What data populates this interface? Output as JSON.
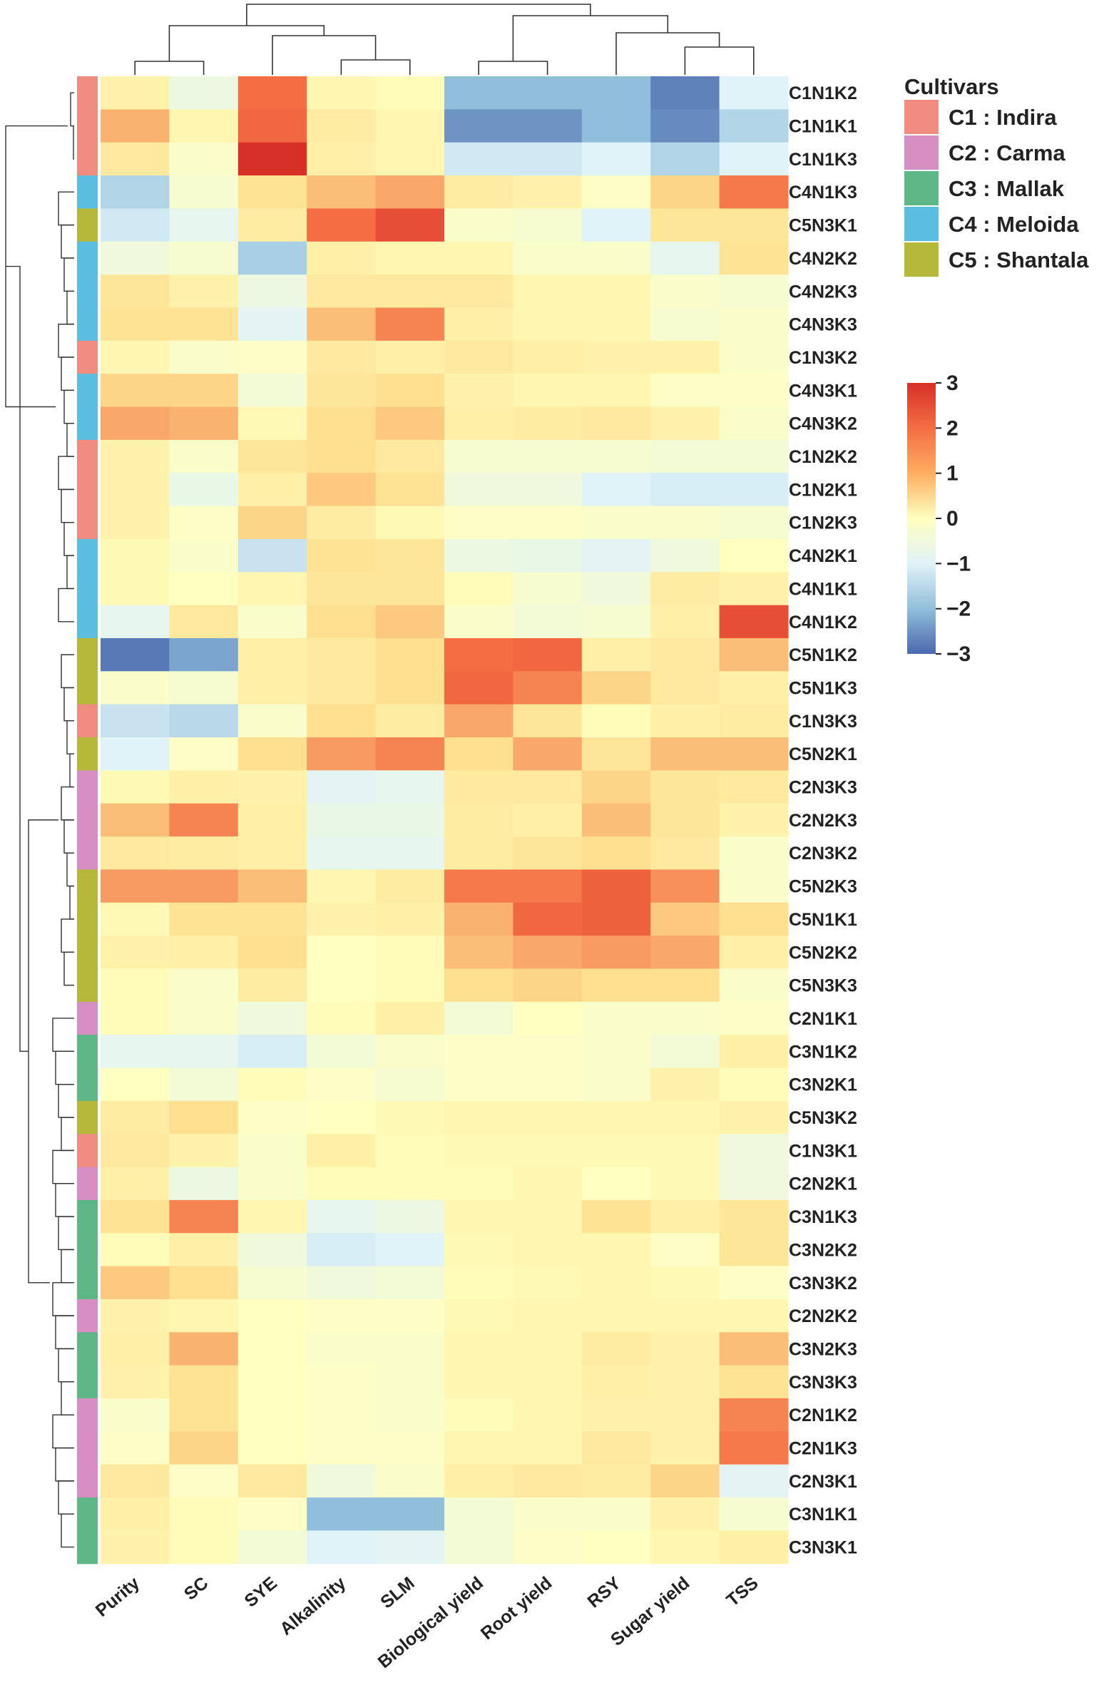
{
  "chart_data": {
    "type": "heatmap",
    "title": "",
    "columns": [
      "Purity",
      "SC",
      "SYE",
      "Alkalinity",
      "SLM",
      "Biological yield",
      "Root yield",
      "RSY",
      "Sugar yield",
      "TSS"
    ],
    "rows": [
      {
        "label": "C1N1K2",
        "cultivar": "C1",
        "values": [
          0.4,
          -0.6,
          2.0,
          0.3,
          0.1,
          -2.0,
          -2.0,
          -2.0,
          -2.7,
          -1.0
        ]
      },
      {
        "label": "C1N1K1",
        "cultivar": "C1",
        "values": [
          1.4,
          0.3,
          2.1,
          0.6,
          0.3,
          -2.5,
          -2.5,
          -2.0,
          -2.6,
          -1.6
        ]
      },
      {
        "label": "C1N1K3",
        "cultivar": "C1",
        "values": [
          0.7,
          -0.2,
          3.0,
          0.5,
          0.3,
          -1.2,
          -1.2,
          -1.0,
          -1.6,
          -1.0
        ]
      },
      {
        "label": "C4N1K3",
        "cultivar": "C4",
        "values": [
          -1.6,
          -0.3,
          0.9,
          1.3,
          1.5,
          0.6,
          0.4,
          -0.1,
          1.1,
          1.9
        ]
      },
      {
        "label": "C5N3K1",
        "cultivar": "C5",
        "values": [
          -1.2,
          -0.8,
          0.6,
          2.0,
          2.5,
          -0.2,
          -0.3,
          -1.0,
          0.8,
          0.8
        ]
      },
      {
        "label": "C4N2K2",
        "cultivar": "C4",
        "values": [
          -0.5,
          -0.3,
          -1.7,
          0.5,
          0.3,
          0.3,
          -0.2,
          -0.2,
          -0.8,
          0.9
        ]
      },
      {
        "label": "C4N2K3",
        "cultivar": "C4",
        "values": [
          0.8,
          0.4,
          -0.6,
          0.7,
          0.7,
          0.7,
          0.3,
          0.3,
          -0.2,
          -0.3
        ]
      },
      {
        "label": "C4N3K3",
        "cultivar": "C4",
        "values": [
          0.9,
          0.9,
          -0.9,
          1.3,
          1.8,
          0.5,
          0.3,
          0.3,
          -0.3,
          -0.2
        ]
      },
      {
        "label": "C1N3K2",
        "cultivar": "C1",
        "values": [
          0.3,
          -0.2,
          -0.1,
          0.7,
          0.5,
          0.7,
          0.5,
          0.4,
          0.4,
          -0.2
        ]
      },
      {
        "label": "C4N3K1",
        "cultivar": "C4",
        "values": [
          1.1,
          1.1,
          -0.4,
          0.8,
          1.0,
          0.4,
          0.3,
          0.3,
          -0.1,
          -0.1
        ]
      },
      {
        "label": "C4N3K2",
        "cultivar": "C4",
        "values": [
          1.5,
          1.4,
          0.2,
          1.0,
          1.2,
          0.5,
          0.6,
          0.7,
          0.4,
          -0.2
        ]
      },
      {
        "label": "C1N2K2",
        "cultivar": "C1",
        "values": [
          0.4,
          -0.2,
          0.8,
          1.0,
          0.7,
          -0.3,
          -0.3,
          -0.3,
          -0.4,
          -0.4
        ]
      },
      {
        "label": "C1N2K1",
        "cultivar": "C1",
        "values": [
          0.4,
          -0.7,
          0.5,
          1.2,
          0.9,
          -0.5,
          -0.5,
          -1.0,
          -1.1,
          -1.1
        ]
      },
      {
        "label": "C1N2K3",
        "cultivar": "C1",
        "values": [
          0.4,
          -0.1,
          1.1,
          0.6,
          0.2,
          -0.1,
          -0.1,
          -0.2,
          -0.2,
          -0.3
        ]
      },
      {
        "label": "C4N2K1",
        "cultivar": "C4",
        "values": [
          0.2,
          -0.2,
          -1.3,
          0.9,
          0.8,
          -0.6,
          -0.7,
          -0.9,
          -0.5,
          0.0
        ]
      },
      {
        "label": "C4N1K1",
        "cultivar": "C4",
        "values": [
          0.2,
          0.0,
          0.3,
          0.8,
          0.8,
          0.1,
          -0.3,
          -0.5,
          0.6,
          0.4
        ]
      },
      {
        "label": "C4N1K2",
        "cultivar": "C4",
        "values": [
          -0.8,
          0.7,
          -0.2,
          1.0,
          1.2,
          -0.2,
          -0.4,
          -0.3,
          0.5,
          2.5
        ]
      },
      {
        "label": "C5N1K2",
        "cultivar": "C5",
        "values": [
          -2.8,
          -2.3,
          0.5,
          0.7,
          1.0,
          2.0,
          2.1,
          0.5,
          0.7,
          1.3
        ]
      },
      {
        "label": "C5N1K3",
        "cultivar": "C5",
        "values": [
          -0.2,
          -0.3,
          0.5,
          0.7,
          1.0,
          2.1,
          1.8,
          1.1,
          0.7,
          0.5
        ]
      },
      {
        "label": "C1N3K3",
        "cultivar": "C1",
        "values": [
          -1.3,
          -1.5,
          -0.2,
          1.0,
          0.6,
          1.5,
          0.8,
          0.1,
          0.5,
          0.6
        ]
      },
      {
        "label": "C5N2K1",
        "cultivar": "C5",
        "values": [
          -1.0,
          -0.1,
          1.0,
          1.6,
          1.8,
          1.0,
          1.5,
          0.8,
          1.3,
          1.3
        ]
      },
      {
        "label": "C2N3K3",
        "cultivar": "C2",
        "values": [
          0.2,
          0.5,
          0.4,
          -0.9,
          -0.8,
          0.7,
          0.7,
          1.1,
          0.8,
          0.7
        ]
      },
      {
        "label": "C2N2K3",
        "cultivar": "C2",
        "values": [
          1.3,
          1.8,
          0.5,
          -0.7,
          -0.7,
          0.6,
          0.5,
          1.3,
          0.8,
          0.4
        ]
      },
      {
        "label": "C2N3K2",
        "cultivar": "C2",
        "values": [
          0.7,
          0.6,
          0.5,
          -0.8,
          -0.8,
          0.6,
          0.8,
          1.0,
          0.7,
          -0.2
        ]
      },
      {
        "label": "C5N2K3",
        "cultivar": "C5",
        "values": [
          1.6,
          1.6,
          1.3,
          0.3,
          0.6,
          1.9,
          1.9,
          2.2,
          1.7,
          -0.2
        ]
      },
      {
        "label": "C5N1K1",
        "cultivar": "C5",
        "values": [
          0.2,
          0.9,
          0.9,
          0.4,
          0.5,
          1.4,
          2.1,
          2.2,
          1.2,
          1.0
        ]
      },
      {
        "label": "C5N2K2",
        "cultivar": "C5",
        "values": [
          0.4,
          0.5,
          1.0,
          0.0,
          0.1,
          1.3,
          1.5,
          1.6,
          1.5,
          0.5
        ]
      },
      {
        "label": "C5N3K3",
        "cultivar": "C5",
        "values": [
          0.1,
          -0.2,
          0.6,
          0.0,
          0.1,
          1.0,
          1.1,
          1.0,
          1.0,
          -0.2
        ]
      },
      {
        "label": "C2N1K1",
        "cultivar": "C2",
        "values": [
          0.1,
          -0.2,
          -0.5,
          0.1,
          0.5,
          -0.4,
          0.0,
          -0.2,
          -0.2,
          -0.1
        ]
      },
      {
        "label": "C3N1K2",
        "cultivar": "C3",
        "values": [
          -0.8,
          -0.8,
          -1.1,
          -0.4,
          -0.2,
          -0.1,
          -0.1,
          -0.2,
          -0.4,
          0.5
        ]
      },
      {
        "label": "C3N2K1",
        "cultivar": "C3",
        "values": [
          0.0,
          -0.4,
          0.1,
          -0.1,
          -0.3,
          -0.1,
          -0.1,
          -0.2,
          0.4,
          0.1
        ]
      },
      {
        "label": "C5N3K2",
        "cultivar": "C5",
        "values": [
          0.6,
          1.0,
          -0.1,
          0.0,
          0.2,
          0.3,
          0.3,
          0.3,
          0.3,
          0.4
        ]
      },
      {
        "label": "C1N3K1",
        "cultivar": "C1",
        "values": [
          0.7,
          0.4,
          -0.2,
          0.5,
          0.1,
          0.2,
          0.2,
          0.2,
          0.2,
          -0.5
        ]
      },
      {
        "label": "C2N2K1",
        "cultivar": "C2",
        "values": [
          0.5,
          -0.6,
          -0.2,
          0.1,
          0.1,
          0.1,
          0.3,
          0.0,
          0.2,
          -0.5
        ]
      },
      {
        "label": "C3N1K3",
        "cultivar": "C3",
        "values": [
          0.9,
          1.8,
          0.3,
          -0.8,
          -0.6,
          0.3,
          0.3,
          0.9,
          0.5,
          0.8
        ]
      },
      {
        "label": "C3N2K2",
        "cultivar": "C3",
        "values": [
          0.1,
          0.5,
          -0.5,
          -1.1,
          -1.0,
          0.2,
          0.3,
          0.3,
          -0.1,
          0.8
        ]
      },
      {
        "label": "C3N3K2",
        "cultivar": "C3",
        "values": [
          1.2,
          1.0,
          -0.3,
          -0.5,
          -0.4,
          0.1,
          0.2,
          0.3,
          0.2,
          -0.1
        ]
      },
      {
        "label": "C2N2K2",
        "cultivar": "C2",
        "values": [
          0.4,
          0.3,
          0.0,
          -0.1,
          -0.1,
          0.2,
          0.3,
          0.3,
          0.3,
          0.3
        ]
      },
      {
        "label": "C3N2K3",
        "cultivar": "C3",
        "values": [
          0.5,
          1.4,
          0.0,
          -0.2,
          -0.2,
          0.3,
          0.3,
          0.6,
          0.4,
          1.3
        ]
      },
      {
        "label": "C3N3K3",
        "cultivar": "C3",
        "values": [
          0.4,
          0.9,
          0.0,
          -0.1,
          -0.2,
          0.3,
          0.3,
          0.5,
          0.4,
          0.9
        ]
      },
      {
        "label": "C2N1K2",
        "cultivar": "C2",
        "values": [
          -0.2,
          0.9,
          0.0,
          -0.1,
          -0.2,
          0.1,
          0.3,
          0.4,
          0.4,
          1.8
        ]
      },
      {
        "label": "C2N1K3",
        "cultivar": "C2",
        "values": [
          -0.1,
          1.1,
          0.0,
          -0.1,
          -0.1,
          0.3,
          0.3,
          0.7,
          0.4,
          1.9
        ]
      },
      {
        "label": "C2N3K1",
        "cultivar": "C2",
        "values": [
          0.7,
          -0.1,
          0.7,
          -0.5,
          -0.2,
          0.5,
          0.7,
          0.6,
          1.1,
          -0.9
        ]
      },
      {
        "label": "C3N1K1",
        "cultivar": "C3",
        "values": [
          0.5,
          0.1,
          -0.1,
          -2.0,
          -2.0,
          -0.4,
          -0.2,
          -0.2,
          0.4,
          -0.3
        ]
      },
      {
        "label": "C3N3K1",
        "cultivar": "C3",
        "values": [
          0.4,
          0.1,
          -0.4,
          -1.0,
          -0.9,
          -0.4,
          -0.1,
          0.0,
          0.3,
          0.5
        ]
      }
    ],
    "color_scale": {
      "min": -3,
      "max": 3,
      "ticks": [
        "3",
        "2",
        "1",
        "0",
        "−1",
        "−2",
        "−3"
      ]
    },
    "legend": {
      "title": "Cultivars",
      "placement": "top-right",
      "items": [
        {
          "code": "C1",
          "label": "C1 : Indira",
          "color": "#f08b80"
        },
        {
          "code": "C2",
          "label": "C2 : Carma",
          "color": "#d78ec2"
        },
        {
          "code": "C3",
          "label": "C3 : Mallak",
          "color": "#5db685"
        },
        {
          "code": "C4",
          "label": "C4 : Meloida",
          "color": "#5bbde0"
        },
        {
          "code": "C5",
          "label": "C5 : Shantala",
          "color": "#b6b83a"
        }
      ]
    }
  }
}
